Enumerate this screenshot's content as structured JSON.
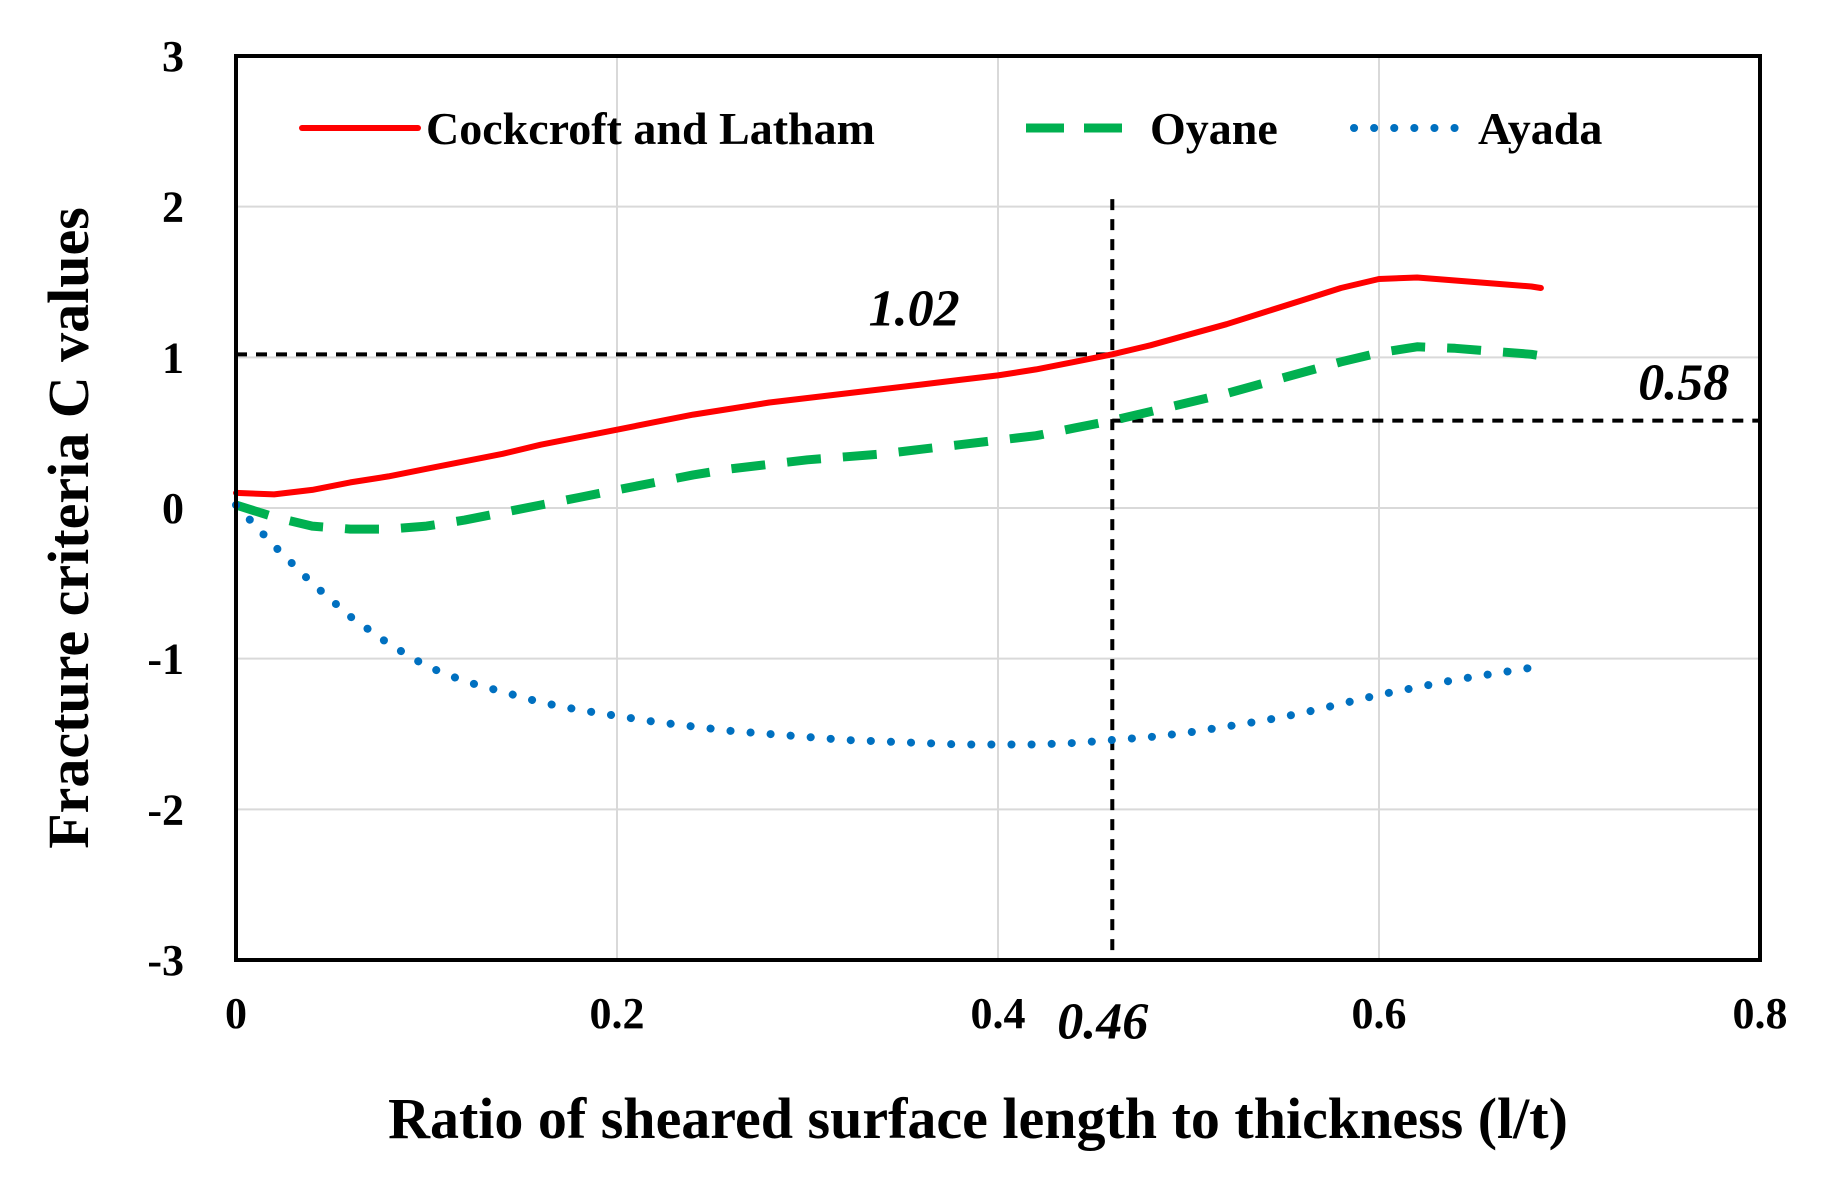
{
  "chart_data": {
    "type": "line",
    "title": "",
    "xlabel": "Ratio of sheared surface length to thickness (l/t)",
    "ylabel": "Fracture criteria C values",
    "xlim": [
      0,
      0.8
    ],
    "ylim": [
      -3,
      3
    ],
    "xticks": [
      0,
      0.2,
      0.4,
      0.6,
      0.8
    ],
    "xtick_labels": [
      "0",
      "0.2",
      "0.4",
      "0.6",
      "0.8"
    ],
    "yticks": [
      -3,
      -2,
      -1,
      0,
      1,
      2,
      3
    ],
    "ytick_labels": [
      "-3",
      "-2",
      "-1",
      "0",
      "1",
      "2",
      "3"
    ],
    "grid": true,
    "legend_position": "top",
    "series": [
      {
        "name": "Cockcroft and Latham",
        "style": "solid",
        "color": "#ff0000",
        "x": [
          0,
          0.02,
          0.04,
          0.06,
          0.08,
          0.1,
          0.12,
          0.14,
          0.16,
          0.18,
          0.2,
          0.22,
          0.24,
          0.26,
          0.28,
          0.3,
          0.32,
          0.34,
          0.36,
          0.38,
          0.4,
          0.42,
          0.44,
          0.46,
          0.48,
          0.5,
          0.52,
          0.54,
          0.56,
          0.58,
          0.6,
          0.62,
          0.64,
          0.66,
          0.68,
          0.685
        ],
        "y": [
          0.1,
          0.09,
          0.12,
          0.17,
          0.21,
          0.26,
          0.31,
          0.36,
          0.42,
          0.47,
          0.52,
          0.57,
          0.62,
          0.66,
          0.7,
          0.73,
          0.76,
          0.79,
          0.82,
          0.85,
          0.88,
          0.92,
          0.97,
          1.02,
          1.08,
          1.15,
          1.22,
          1.3,
          1.38,
          1.46,
          1.52,
          1.53,
          1.51,
          1.49,
          1.47,
          1.46
        ]
      },
      {
        "name": "Oyane",
        "style": "dashed",
        "color": "#00b050",
        "x": [
          0,
          0.02,
          0.04,
          0.06,
          0.08,
          0.1,
          0.12,
          0.14,
          0.16,
          0.18,
          0.2,
          0.22,
          0.24,
          0.26,
          0.28,
          0.3,
          0.32,
          0.34,
          0.36,
          0.38,
          0.4,
          0.42,
          0.44,
          0.46,
          0.48,
          0.5,
          0.52,
          0.54,
          0.56,
          0.58,
          0.6,
          0.62,
          0.64,
          0.66,
          0.68,
          0.685
        ],
        "y": [
          0.02,
          -0.06,
          -0.12,
          -0.14,
          -0.14,
          -0.12,
          -0.08,
          -0.03,
          0.02,
          0.07,
          0.12,
          0.17,
          0.22,
          0.26,
          0.29,
          0.32,
          0.34,
          0.36,
          0.39,
          0.42,
          0.45,
          0.48,
          0.53,
          0.58,
          0.64,
          0.7,
          0.76,
          0.83,
          0.9,
          0.97,
          1.03,
          1.07,
          1.06,
          1.04,
          1.02,
          1.01
        ]
      },
      {
        "name": "Ayada",
        "style": "dotted",
        "color": "#0070c0",
        "x": [
          0,
          0.02,
          0.04,
          0.06,
          0.08,
          0.1,
          0.12,
          0.14,
          0.16,
          0.18,
          0.2,
          0.22,
          0.24,
          0.26,
          0.28,
          0.3,
          0.32,
          0.34,
          0.36,
          0.38,
          0.4,
          0.42,
          0.44,
          0.46,
          0.48,
          0.5,
          0.52,
          0.54,
          0.56,
          0.58,
          0.6,
          0.62,
          0.64,
          0.66,
          0.68,
          0.685
        ],
        "y": [
          0.02,
          -0.25,
          -0.5,
          -0.72,
          -0.9,
          -1.05,
          -1.15,
          -1.22,
          -1.29,
          -1.34,
          -1.38,
          -1.42,
          -1.45,
          -1.48,
          -1.5,
          -1.52,
          -1.54,
          -1.55,
          -1.56,
          -1.57,
          -1.57,
          -1.57,
          -1.56,
          -1.54,
          -1.52,
          -1.49,
          -1.45,
          -1.41,
          -1.36,
          -1.3,
          -1.24,
          -1.19,
          -1.14,
          -1.1,
          -1.06,
          -1.05
        ]
      }
    ],
    "reference_lines": [
      {
        "type": "vertical",
        "x": 0.46,
        "y_from": -3,
        "y_to": 2.05
      },
      {
        "type": "horizontal",
        "y": 1.02,
        "x_from": 0,
        "x_to": 0.46
      },
      {
        "type": "horizontal",
        "y": 0.58,
        "x_from": 0.46,
        "x_to": 0.8
      }
    ],
    "annotations": [
      {
        "text": "1.02",
        "x": 0.356,
        "y": 1.33
      },
      {
        "text": "0.58",
        "x": 0.76,
        "y": 0.84
      },
      {
        "text": "0.46",
        "x": 0.455,
        "y": -3.4
      }
    ]
  }
}
